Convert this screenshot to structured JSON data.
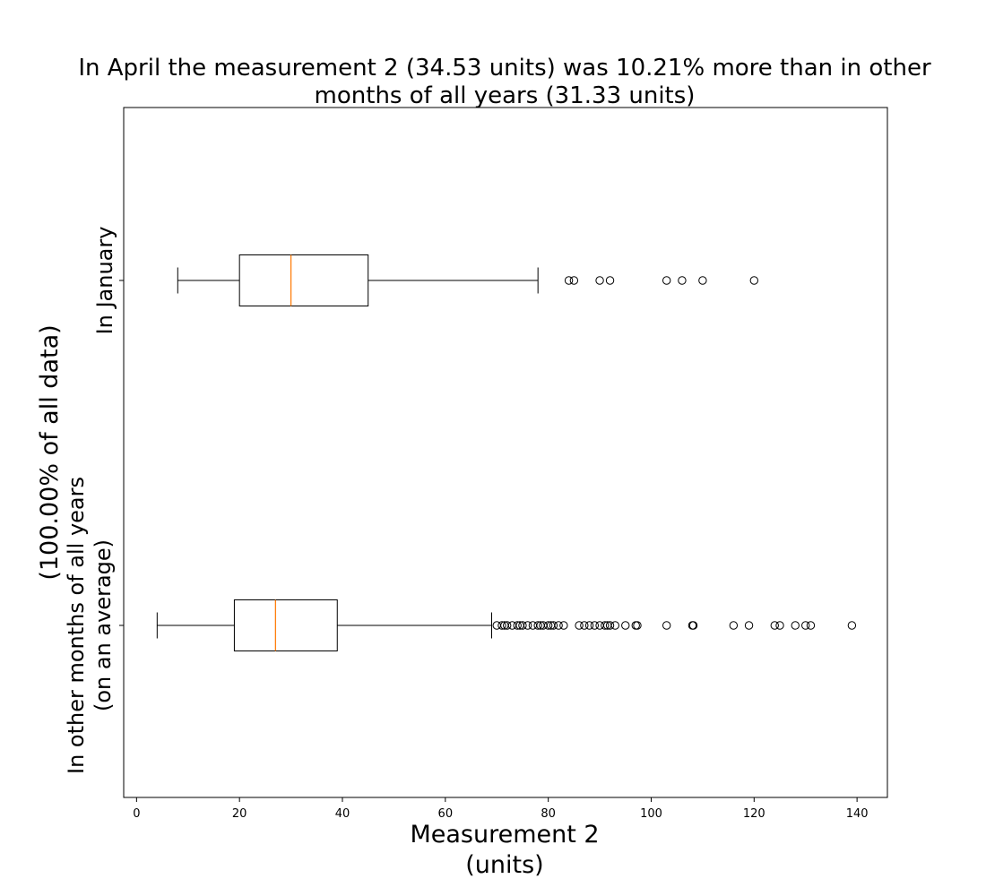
{
  "chart_data": {
    "type": "boxplot",
    "orientation": "horizontal",
    "title": "In April the measurement 2 (34.53 units) was 10.21% more than in other months of all years (31.33 units)",
    "title_lines": [
      "In April the measurement 2 (34.53 units) was 10.21% more than in other",
      "months of all years (31.33 units)"
    ],
    "xlabel_lines": [
      "Measurement 2",
      "(units)"
    ],
    "ylabel_lines": [
      "(100.00% of all data)"
    ],
    "xlim": [
      -2.5,
      145.9
    ],
    "xticks": [
      0,
      20,
      40,
      60,
      80,
      100,
      120,
      140
    ],
    "grid": false,
    "legend": "none",
    "colors": {
      "box": "#000000",
      "median": "#ff7f0e",
      "flier": "#000000"
    },
    "series": [
      {
        "label_lines": [
          "In January"
        ],
        "whisker_low": 8,
        "q1": 20,
        "median": 30,
        "q3": 45,
        "whisker_high": 78,
        "fliers": [
          84,
          85,
          90,
          92,
          103,
          106,
          110,
          120
        ]
      },
      {
        "label_lines": [
          "In other months of all years",
          "(on an average)"
        ],
        "whisker_low": 4,
        "q1": 19,
        "median": 27,
        "q3": 39,
        "whisker_high": 69,
        "fliers": [
          70,
          71,
          71.5,
          72,
          73,
          74,
          74.5,
          75,
          76,
          77,
          78,
          78.5,
          79,
          80,
          80.5,
          81,
          82,
          83,
          86,
          87,
          88,
          89,
          90,
          91,
          91.5,
          92,
          93,
          95,
          97,
          97.3,
          103,
          108,
          108.2,
          116,
          119,
          124,
          125,
          128,
          130,
          131,
          139
        ]
      }
    ]
  }
}
